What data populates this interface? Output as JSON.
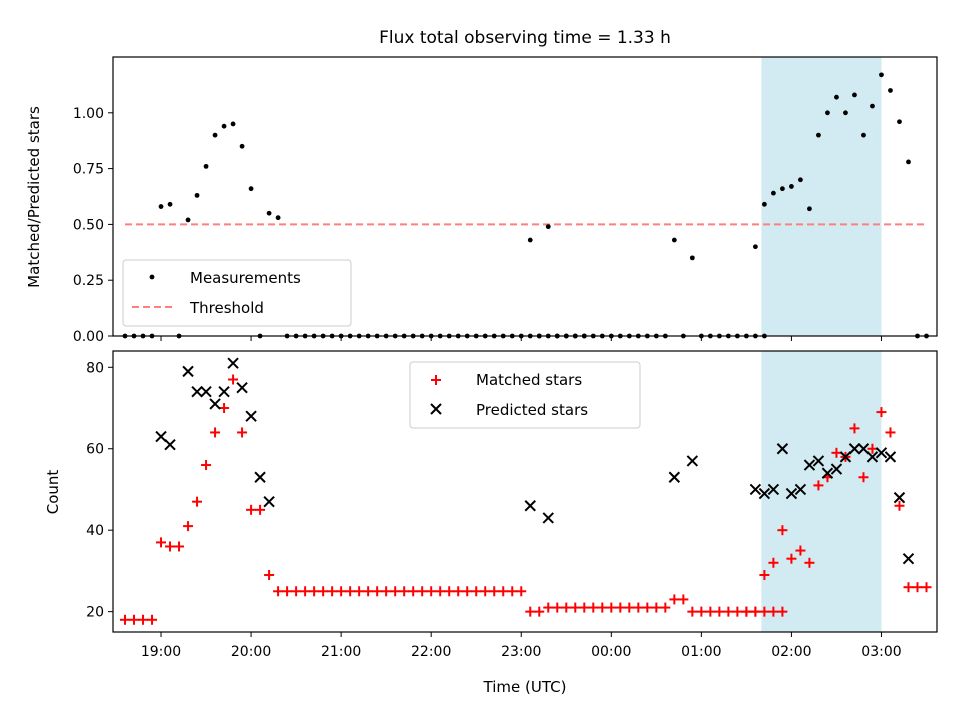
{
  "chart_data": [
    {
      "type": "scatter",
      "title": "Flux total observing time = 1.33 h",
      "xlabel": "",
      "ylabel": "Matched/Predicted stars",
      "xlim": [
        "18:28",
        "03:37"
      ],
      "ylim": [
        0,
        1.25
      ],
      "yticks": [
        "0.00",
        "0.25",
        "0.50",
        "0.75",
        "1.00"
      ],
      "grid": false,
      "legend_position": "lower-left",
      "highlight_span": [
        "01:40",
        "03:00"
      ],
      "highlight_color": "#add8e6",
      "series": [
        {
          "name": "Measurements",
          "marker": "dot",
          "color": "#000000",
          "points": [
            [
              "18:36",
              0
            ],
            [
              "18:42",
              0
            ],
            [
              "18:48",
              0
            ],
            [
              "18:54",
              0
            ],
            [
              "19:00",
              0.58
            ],
            [
              "19:06",
              0.59
            ],
            [
              "19:12",
              0
            ],
            [
              "19:18",
              0.52
            ],
            [
              "19:24",
              0.63
            ],
            [
              "19:30",
              0.76
            ],
            [
              "19:36",
              0.9
            ],
            [
              "19:42",
              0.94
            ],
            [
              "19:48",
              0.95
            ],
            [
              "19:54",
              0.85
            ],
            [
              "20:00",
              0.66
            ],
            [
              "20:06",
              0
            ],
            [
              "20:12",
              0.55
            ],
            [
              "20:18",
              0.53
            ],
            [
              "20:24",
              0
            ],
            [
              "20:30",
              0
            ],
            [
              "20:36",
              0
            ],
            [
              "20:42",
              0
            ],
            [
              "20:48",
              0
            ],
            [
              "20:54",
              0
            ],
            [
              "21:00",
              0
            ],
            [
              "21:06",
              0
            ],
            [
              "21:12",
              0
            ],
            [
              "21:18",
              0
            ],
            [
              "21:24",
              0
            ],
            [
              "21:30",
              0
            ],
            [
              "21:36",
              0
            ],
            [
              "21:42",
              0
            ],
            [
              "21:48",
              0
            ],
            [
              "21:54",
              0
            ],
            [
              "22:00",
              0
            ],
            [
              "22:06",
              0
            ],
            [
              "22:12",
              0
            ],
            [
              "22:18",
              0
            ],
            [
              "22:24",
              0
            ],
            [
              "22:30",
              0
            ],
            [
              "22:36",
              0
            ],
            [
              "22:42",
              0
            ],
            [
              "22:48",
              0
            ],
            [
              "22:54",
              0
            ],
            [
              "23:00",
              0
            ],
            [
              "23:06",
              0
            ],
            [
              "23:12",
              0
            ],
            [
              "23:18",
              0
            ],
            [
              "23:24",
              0
            ],
            [
              "23:30",
              0
            ],
            [
              "23:36",
              0
            ],
            [
              "23:42",
              0
            ],
            [
              "23:06",
              0.43
            ],
            [
              "23:12",
              0
            ],
            [
              "23:18",
              0.49
            ],
            [
              "23:24",
              0
            ],
            [
              "23:30",
              0
            ],
            [
              "23:36",
              0
            ],
            [
              "23:42",
              0
            ],
            [
              "23:48",
              0
            ],
            [
              "23:54",
              0
            ],
            [
              "00:00",
              0
            ],
            [
              "00:06",
              0
            ],
            [
              "00:12",
              0
            ],
            [
              "00:18",
              0
            ],
            [
              "00:24",
              0
            ],
            [
              "00:30",
              0
            ],
            [
              "00:36",
              0
            ],
            [
              "00:42",
              0.43
            ],
            [
              "00:48",
              0
            ],
            [
              "00:54",
              0.35
            ],
            [
              "01:00",
              0
            ],
            [
              "01:06",
              0
            ],
            [
              "01:12",
              0
            ],
            [
              "01:18",
              0
            ],
            [
              "01:24",
              0
            ],
            [
              "01:30",
              0
            ],
            [
              "01:36",
              0
            ],
            [
              "01:42",
              0
            ],
            [
              "01:36",
              0.4
            ],
            [
              "01:42",
              0.59
            ],
            [
              "01:48",
              0.64
            ],
            [
              "01:54",
              0.66
            ],
            [
              "02:00",
              0.67
            ],
            [
              "02:06",
              0.7
            ],
            [
              "02:12",
              0.57
            ],
            [
              "02:18",
              0.9
            ],
            [
              "02:24",
              1.0
            ],
            [
              "02:30",
              1.07
            ],
            [
              "02:36",
              1.0
            ],
            [
              "02:42",
              1.08
            ],
            [
              "02:48",
              0.9
            ],
            [
              "02:54",
              1.03
            ],
            [
              "03:00",
              1.17
            ],
            [
              "03:06",
              1.1
            ],
            [
              "03:12",
              0.96
            ],
            [
              "03:18",
              0.78
            ],
            [
              "03:24",
              0
            ],
            [
              "03:30",
              0
            ]
          ]
        },
        {
          "name": "Threshold",
          "marker": "dashed-line",
          "color": "#ff7f7f",
          "points": [
            [
              "18:36",
              0.5
            ],
            [
              "03:30",
              0.5
            ]
          ]
        }
      ]
    },
    {
      "type": "scatter",
      "title": "",
      "xlabel": "Time (UTC)",
      "ylabel": "Count",
      "xlim": [
        "18:28",
        "03:37"
      ],
      "ylim": [
        15,
        84
      ],
      "xticks": [
        "19:00",
        "20:00",
        "21:00",
        "22:00",
        "23:00",
        "00:00",
        "01:00",
        "02:00",
        "03:00"
      ],
      "yticks": [
        "20",
        "40",
        "60",
        "80"
      ],
      "grid": false,
      "legend_position": "top-center",
      "highlight_span": [
        "01:40",
        "03:00"
      ],
      "highlight_color": "#add8e6",
      "series": [
        {
          "name": "Matched stars",
          "marker": "plus",
          "color": "#ff0000",
          "points": [
            [
              "18:36",
              18
            ],
            [
              "18:42",
              18
            ],
            [
              "18:48",
              18
            ],
            [
              "18:54",
              18
            ],
            [
              "19:00",
              37
            ],
            [
              "19:06",
              36
            ],
            [
              "19:12",
              36
            ],
            [
              "19:18",
              41
            ],
            [
              "19:24",
              47
            ],
            [
              "19:30",
              56
            ],
            [
              "19:36",
              64
            ],
            [
              "19:42",
              70
            ],
            [
              "19:48",
              77
            ],
            [
              "19:54",
              64
            ],
            [
              "20:00",
              45
            ],
            [
              "20:06",
              45
            ],
            [
              "20:12",
              29
            ],
            [
              "20:18",
              25
            ],
            [
              "20:24",
              25
            ],
            [
              "20:30",
              25
            ],
            [
              "20:36",
              25
            ],
            [
              "20:42",
              25
            ],
            [
              "20:48",
              25
            ],
            [
              "20:54",
              25
            ],
            [
              "21:00",
              25
            ],
            [
              "21:06",
              25
            ],
            [
              "21:12",
              25
            ],
            [
              "21:18",
              25
            ],
            [
              "21:24",
              25
            ],
            [
              "21:30",
              25
            ],
            [
              "21:36",
              25
            ],
            [
              "21:42",
              25
            ],
            [
              "21:48",
              25
            ],
            [
              "21:54",
              25
            ],
            [
              "22:00",
              25
            ],
            [
              "22:06",
              25
            ],
            [
              "22:12",
              25
            ],
            [
              "22:18",
              25
            ],
            [
              "22:24",
              25
            ],
            [
              "22:30",
              25
            ],
            [
              "22:36",
              25
            ],
            [
              "22:42",
              25
            ],
            [
              "22:48",
              25
            ],
            [
              "22:54",
              25
            ],
            [
              "23:00",
              25
            ],
            [
              "23:06",
              20
            ],
            [
              "23:12",
              20
            ],
            [
              "23:18",
              21
            ],
            [
              "23:24",
              21
            ],
            [
              "23:30",
              21
            ],
            [
              "23:36",
              21
            ],
            [
              "23:42",
              21
            ],
            [
              "23:48",
              21
            ],
            [
              "23:54",
              21
            ],
            [
              "00:00",
              21
            ],
            [
              "00:06",
              21
            ],
            [
              "00:12",
              21
            ],
            [
              "00:18",
              21
            ],
            [
              "00:24",
              21
            ],
            [
              "00:30",
              21
            ],
            [
              "00:36",
              21
            ],
            [
              "00:42",
              23
            ],
            [
              "00:48",
              23
            ],
            [
              "00:54",
              20
            ],
            [
              "01:00",
              20
            ],
            [
              "01:06",
              20
            ],
            [
              "01:12",
              20
            ],
            [
              "01:18",
              20
            ],
            [
              "01:24",
              20
            ],
            [
              "01:30",
              20
            ],
            [
              "01:36",
              20
            ],
            [
              "01:42",
              20
            ],
            [
              "01:48",
              20
            ],
            [
              "01:54",
              20
            ],
            [
              "01:30",
              20
            ],
            [
              "01:36",
              20
            ],
            [
              "01:42",
              29
            ],
            [
              "01:48",
              32
            ],
            [
              "01:54",
              40
            ],
            [
              "02:00",
              33
            ],
            [
              "02:06",
              35
            ],
            [
              "02:12",
              32
            ],
            [
              "02:18",
              51
            ],
            [
              "02:24",
              53
            ],
            [
              "02:30",
              59
            ],
            [
              "02:36",
              58
            ],
            [
              "02:42",
              65
            ],
            [
              "02:48",
              53
            ],
            [
              "02:54",
              60
            ],
            [
              "03:00",
              69
            ],
            [
              "03:06",
              64
            ],
            [
              "03:12",
              46
            ],
            [
              "03:18",
              26
            ],
            [
              "03:24",
              26
            ],
            [
              "03:30",
              26
            ]
          ]
        },
        {
          "name": "Predicted stars",
          "marker": "x",
          "color": "#000000",
          "points": [
            [
              "19:00",
              63
            ],
            [
              "19:06",
              61
            ],
            [
              "19:18",
              79
            ],
            [
              "19:24",
              74
            ],
            [
              "19:30",
              74
            ],
            [
              "19:36",
              71
            ],
            [
              "19:42",
              74
            ],
            [
              "19:48",
              81
            ],
            [
              "19:54",
              75
            ],
            [
              "20:00",
              68
            ],
            [
              "20:06",
              53
            ],
            [
              "20:12",
              47
            ],
            [
              "23:06",
              46
            ],
            [
              "23:18",
              43
            ],
            [
              "00:42",
              53
            ],
            [
              "00:54",
              57
            ],
            [
              "01:36",
              50
            ],
            [
              "01:42",
              49
            ],
            [
              "01:48",
              50
            ],
            [
              "01:54",
              60
            ],
            [
              "02:00",
              49
            ],
            [
              "02:06",
              50
            ],
            [
              "02:12",
              56
            ],
            [
              "02:18",
              57
            ],
            [
              "02:24",
              54
            ],
            [
              "02:30",
              55
            ],
            [
              "02:36",
              58
            ],
            [
              "02:42",
              60
            ],
            [
              "02:48",
              60
            ],
            [
              "02:54",
              58
            ],
            [
              "03:00",
              59
            ],
            [
              "03:06",
              58
            ],
            [
              "03:12",
              48
            ],
            [
              "03:18",
              33
            ]
          ]
        }
      ]
    }
  ]
}
